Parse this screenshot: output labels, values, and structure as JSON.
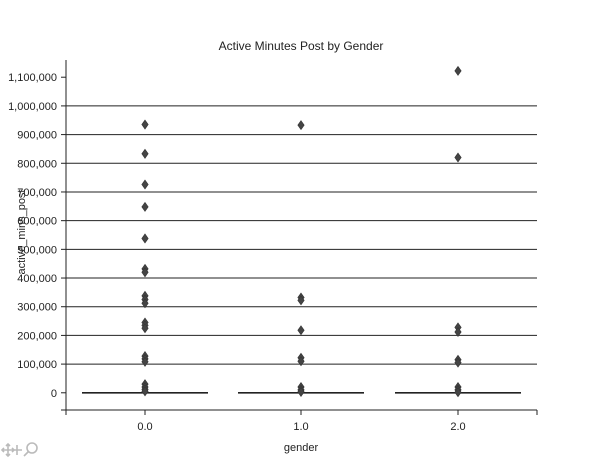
{
  "chart_data": {
    "type": "scatter",
    "title": "Active Minutes Post by Gender",
    "xlabel": "gender",
    "ylabel": "active_mins_post",
    "categories": [
      "0.0",
      "1.0",
      "2.0"
    ],
    "ylim": [
      -60000,
      1160000
    ],
    "yticks": [
      0,
      100000,
      200000,
      300000,
      400000,
      500000,
      600000,
      700000,
      800000,
      900000,
      1000000,
      1100000
    ],
    "ytick_labels": [
      "0",
      "100,000",
      "200,000",
      "300,000",
      "400,000",
      "500,000",
      "600,000",
      "700,000",
      "800,000",
      "900,000",
      "1,000,000",
      "1,100,000"
    ],
    "grid": "horizontal",
    "medians": [
      0,
      0,
      0
    ],
    "series": [
      {
        "category": "0.0",
        "values": [
          935000,
          833000,
          726000,
          648000,
          538000,
          432000,
          420000,
          338000,
          325000,
          312000,
          245000,
          235000,
          225000,
          128000,
          118000,
          108000,
          30000,
          20000,
          12000,
          5000
        ]
      },
      {
        "category": "1.0",
        "values": [
          933000,
          332000,
          322000,
          218000,
          122000,
          110000,
          20000,
          10000,
          3000
        ]
      },
      {
        "category": "2.0",
        "values": [
          1122000,
          820000,
          228000,
          212000,
          115000,
          105000,
          20000,
          10000,
          2000
        ]
      }
    ]
  },
  "toolbar": {
    "icon": "pan-zoom-icon"
  }
}
